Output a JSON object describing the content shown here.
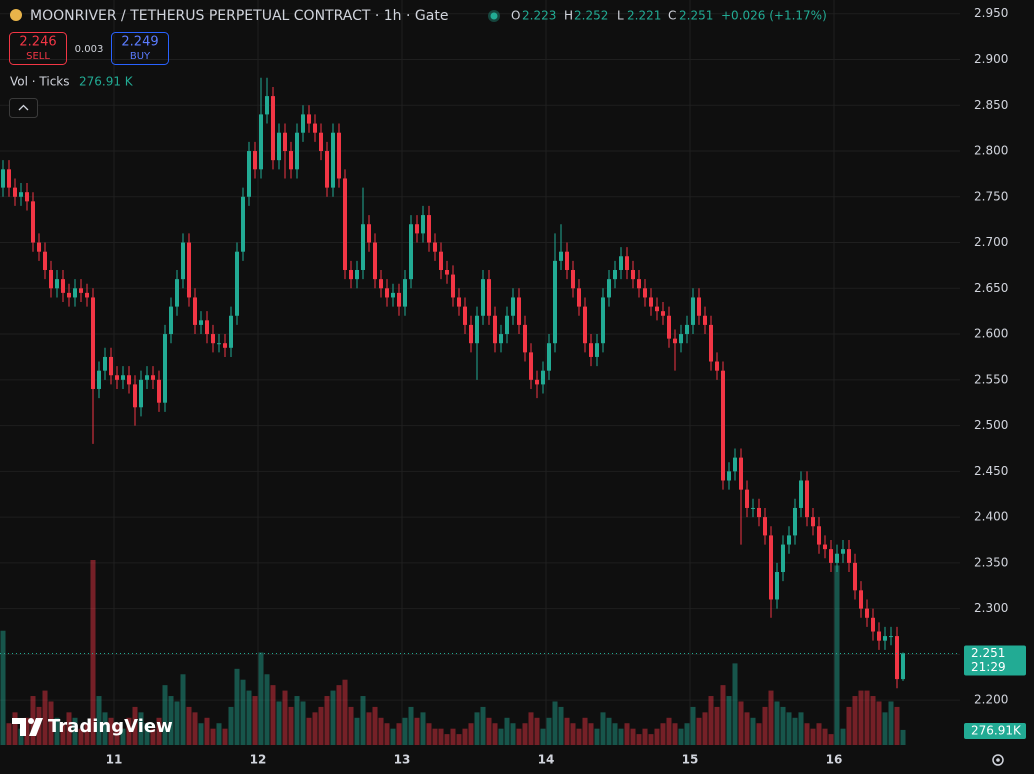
{
  "chart_data": {
    "type": "candlestick",
    "title": "MOONRIVER / TETHERUS PERPETUAL CONTRACT · 1h · Gate",
    "ohlc_labels": [
      "O",
      "H",
      "L",
      "C"
    ],
    "change": "+0.026 (+1.17%)",
    "sell_price": 2.246,
    "sell_label": "SELL",
    "spread": 0.003,
    "buy_price": 2.249,
    "buy_label": "BUY",
    "volume_title": "Vol · Ticks",
    "volume_header_value": "276.91 K",
    "volume_label": "276.91K",
    "countdown": "21:29",
    "brand": "TradingView",
    "up_color": "#22ab94",
    "down_color": "#f23645",
    "grid": true,
    "xlim": [
      -0.5,
      150.5
    ],
    "xticks": [
      {
        "value": 18.5,
        "label": "11"
      },
      {
        "value": 42.5,
        "label": "12"
      },
      {
        "value": 66.5,
        "label": "13"
      },
      {
        "value": 90.5,
        "label": "14"
      },
      {
        "value": 114.5,
        "label": "15"
      },
      {
        "value": 138.5,
        "label": "16"
      }
    ],
    "ylim": [
      2.151,
      2.965
    ],
    "yticks": [
      {
        "value": 2.2,
        "label": "2.200"
      },
      {
        "value": 2.25,
        "label": "2.250"
      },
      {
        "value": 2.3,
        "label": "2.300"
      },
      {
        "value": 2.35,
        "label": "2.350"
      },
      {
        "value": 2.4,
        "label": "2.400"
      },
      {
        "value": 2.45,
        "label": "2.450"
      },
      {
        "value": 2.5,
        "label": "2.500"
      },
      {
        "value": 2.55,
        "label": "2.550"
      },
      {
        "value": 2.6,
        "label": "2.600"
      },
      {
        "value": 2.65,
        "label": "2.650"
      },
      {
        "value": 2.7,
        "label": "2.700"
      },
      {
        "value": 2.75,
        "label": "2.750"
      },
      {
        "value": 2.8,
        "label": "2.800"
      },
      {
        "value": 2.85,
        "label": "2.850"
      },
      {
        "value": 2.9,
        "label": "2.900"
      },
      {
        "value": 2.95,
        "label": "2.950"
      }
    ],
    "open": [
      2.76,
      2.78,
      2.76,
      2.75,
      2.755,
      2.745,
      2.7,
      2.69,
      2.67,
      2.65,
      2.66,
      2.645,
      2.64,
      2.65,
      2.645,
      2.64,
      2.54,
      2.56,
      2.575,
      2.555,
      2.55,
      2.555,
      2.545,
      2.52,
      2.55,
      2.555,
      2.55,
      2.525,
      2.6,
      2.63,
      2.66,
      2.7,
      2.64,
      2.61,
      2.615,
      2.6,
      2.59,
      2.59,
      2.585,
      2.62,
      2.69,
      2.75,
      2.8,
      2.78,
      2.84,
      2.86,
      2.79,
      2.82,
      2.8,
      2.78,
      2.82,
      2.84,
      2.83,
      2.82,
      2.8,
      2.76,
      2.82,
      2.77,
      2.67,
      2.66,
      2.67,
      2.72,
      2.7,
      2.66,
      2.65,
      2.64,
      2.645,
      2.63,
      2.66,
      2.72,
      2.71,
      2.73,
      2.7,
      2.69,
      2.67,
      2.665,
      2.64,
      2.63,
      2.61,
      2.59,
      2.62,
      2.66,
      2.62,
      2.59,
      2.6,
      2.62,
      2.64,
      2.61,
      2.58,
      2.55,
      2.545,
      2.56,
      2.59,
      2.68,
      2.69,
      2.67,
      2.65,
      2.63,
      2.59,
      2.575,
      2.59,
      2.64,
      2.66,
      2.67,
      2.685,
      2.67,
      2.66,
      2.65,
      2.64,
      2.63,
      2.625,
      2.62,
      2.595,
      2.59,
      2.6,
      2.61,
      2.64,
      2.62,
      2.61,
      2.57,
      2.56,
      2.44,
      2.45,
      2.465,
      2.43,
      2.41,
      2.41,
      2.4,
      2.38,
      2.31,
      2.34,
      2.37,
      2.38,
      2.41,
      2.44,
      2.4,
      2.39,
      2.37,
      2.365,
      2.35,
      2.36,
      2.365,
      2.35,
      2.32,
      2.3,
      2.29,
      2.275,
      2.265,
      2.27,
      2.27,
      2.223
    ],
    "high": [
      2.79,
      2.79,
      2.77,
      2.765,
      2.765,
      2.755,
      2.71,
      2.7,
      2.68,
      2.67,
      2.67,
      2.655,
      2.66,
      2.66,
      2.655,
      2.65,
      2.57,
      2.585,
      2.585,
      2.565,
      2.565,
      2.565,
      2.555,
      2.56,
      2.565,
      2.565,
      2.56,
      2.61,
      2.64,
      2.67,
      2.71,
      2.71,
      2.65,
      2.625,
      2.625,
      2.61,
      2.6,
      2.6,
      2.63,
      2.7,
      2.76,
      2.81,
      2.81,
      2.88,
      2.88,
      2.87,
      2.83,
      2.83,
      2.81,
      2.83,
      2.85,
      2.85,
      2.84,
      2.83,
      2.81,
      2.83,
      2.83,
      2.78,
      2.68,
      2.68,
      2.76,
      2.73,
      2.71,
      2.67,
      2.66,
      2.655,
      2.655,
      2.67,
      2.73,
      2.73,
      2.74,
      2.74,
      2.71,
      2.7,
      2.68,
      2.675,
      2.65,
      2.64,
      2.62,
      2.63,
      2.67,
      2.67,
      2.63,
      2.61,
      2.63,
      2.65,
      2.65,
      2.62,
      2.59,
      2.56,
      2.57,
      2.6,
      2.71,
      2.72,
      2.7,
      2.68,
      2.66,
      2.64,
      2.6,
      2.6,
      2.65,
      2.67,
      2.68,
      2.695,
      2.695,
      2.68,
      2.67,
      2.66,
      2.65,
      2.64,
      2.635,
      2.63,
      2.605,
      2.61,
      2.62,
      2.65,
      2.65,
      2.63,
      2.62,
      2.58,
      2.57,
      2.46,
      2.475,
      2.475,
      2.44,
      2.42,
      2.42,
      2.41,
      2.39,
      2.35,
      2.38,
      2.39,
      2.42,
      2.45,
      2.45,
      2.41,
      2.4,
      2.38,
      2.375,
      2.37,
      2.375,
      2.375,
      2.36,
      2.33,
      2.31,
      2.3,
      2.285,
      2.28,
      2.28,
      2.28,
      2.252
    ],
    "low": [
      2.75,
      2.75,
      2.74,
      2.74,
      2.735,
      2.69,
      2.68,
      2.66,
      2.64,
      2.64,
      2.635,
      2.63,
      2.63,
      2.635,
      2.63,
      2.48,
      2.53,
      2.55,
      2.545,
      2.54,
      2.54,
      2.535,
      2.5,
      2.51,
      2.54,
      2.54,
      2.515,
      2.515,
      2.59,
      2.62,
      2.65,
      2.63,
      2.6,
      2.6,
      2.59,
      2.58,
      2.58,
      2.575,
      2.575,
      2.61,
      2.68,
      2.74,
      2.77,
      2.77,
      2.83,
      2.78,
      2.78,
      2.77,
      2.77,
      2.77,
      2.81,
      2.82,
      2.81,
      2.79,
      2.75,
      2.75,
      2.76,
      2.66,
      2.65,
      2.65,
      2.66,
      2.69,
      2.65,
      2.64,
      2.63,
      2.63,
      2.62,
      2.62,
      2.65,
      2.7,
      2.7,
      2.69,
      2.68,
      2.66,
      2.655,
      2.63,
      2.62,
      2.6,
      2.58,
      2.55,
      2.61,
      2.61,
      2.58,
      2.58,
      2.59,
      2.61,
      2.6,
      2.57,
      2.54,
      2.53,
      2.535,
      2.55,
      2.58,
      2.67,
      2.66,
      2.64,
      2.62,
      2.58,
      2.565,
      2.565,
      2.58,
      2.63,
      2.65,
      2.66,
      2.66,
      2.65,
      2.64,
      2.63,
      2.62,
      2.615,
      2.61,
      2.585,
      2.56,
      2.58,
      2.59,
      2.6,
      2.61,
      2.6,
      2.56,
      2.55,
      2.43,
      2.43,
      2.44,
      2.37,
      2.4,
      2.4,
      2.39,
      2.37,
      2.29,
      2.3,
      2.33,
      2.36,
      2.37,
      2.4,
      2.39,
      2.38,
      2.36,
      2.355,
      2.34,
      2.34,
      2.35,
      2.34,
      2.31,
      2.29,
      2.28,
      2.265,
      2.255,
      2.255,
      2.26,
      2.213,
      2.221
    ],
    "close": [
      2.78,
      2.76,
      2.75,
      2.755,
      2.745,
      2.7,
      2.69,
      2.67,
      2.65,
      2.66,
      2.645,
      2.64,
      2.65,
      2.645,
      2.64,
      2.54,
      2.56,
      2.575,
      2.555,
      2.55,
      2.555,
      2.545,
      2.52,
      2.55,
      2.555,
      2.55,
      2.525,
      2.6,
      2.63,
      2.66,
      2.7,
      2.64,
      2.61,
      2.615,
      2.6,
      2.59,
      2.59,
      2.585,
      2.62,
      2.69,
      2.75,
      2.8,
      2.78,
      2.84,
      2.86,
      2.79,
      2.82,
      2.8,
      2.78,
      2.82,
      2.84,
      2.83,
      2.82,
      2.8,
      2.76,
      2.82,
      2.77,
      2.67,
      2.66,
      2.67,
      2.72,
      2.7,
      2.66,
      2.65,
      2.64,
      2.645,
      2.63,
      2.66,
      2.72,
      2.71,
      2.73,
      2.7,
      2.69,
      2.67,
      2.665,
      2.64,
      2.63,
      2.61,
      2.59,
      2.62,
      2.66,
      2.62,
      2.59,
      2.6,
      2.62,
      2.64,
      2.61,
      2.58,
      2.55,
      2.545,
      2.56,
      2.59,
      2.68,
      2.69,
      2.67,
      2.65,
      2.63,
      2.59,
      2.575,
      2.59,
      2.64,
      2.66,
      2.67,
      2.685,
      2.67,
      2.66,
      2.65,
      2.64,
      2.63,
      2.625,
      2.62,
      2.595,
      2.59,
      2.6,
      2.61,
      2.64,
      2.62,
      2.61,
      2.57,
      2.56,
      2.44,
      2.45,
      2.465,
      2.43,
      2.41,
      2.41,
      2.4,
      2.38,
      2.31,
      2.34,
      2.37,
      2.38,
      2.41,
      2.44,
      2.4,
      2.39,
      2.37,
      2.365,
      2.35,
      2.36,
      2.365,
      2.35,
      2.32,
      2.3,
      2.29,
      2.275,
      2.265,
      2.27,
      2.27,
      2.223,
      2.251
    ],
    "volume": [
      2100,
      400,
      600,
      300,
      500,
      900,
      700,
      1000,
      800,
      500,
      400,
      600,
      500,
      300,
      400,
      3400,
      900,
      600,
      500,
      400,
      300,
      500,
      700,
      600,
      400,
      300,
      500,
      1100,
      900,
      800,
      1300,
      700,
      600,
      400,
      500,
      300,
      400,
      300,
      700,
      1400,
      1200,
      1000,
      900,
      1700,
      1300,
      1100,
      800,
      1000,
      700,
      900,
      800,
      500,
      600,
      700,
      900,
      1000,
      1100,
      1200,
      700,
      500,
      900,
      600,
      700,
      500,
      400,
      300,
      400,
      500,
      700,
      500,
      600,
      400,
      300,
      300,
      200,
      300,
      200,
      300,
      400,
      600,
      700,
      500,
      400,
      300,
      500,
      400,
      300,
      400,
      600,
      500,
      300,
      500,
      800,
      700,
      500,
      400,
      300,
      500,
      400,
      300,
      600,
      500,
      400,
      300,
      400,
      300,
      200,
      300,
      200,
      300,
      400,
      500,
      400,
      300,
      400,
      700,
      500,
      600,
      900,
      700,
      1100,
      900,
      1500,
      800,
      600,
      500,
      400,
      700,
      1000,
      800,
      700,
      600,
      500,
      600,
      400,
      300,
      400,
      300,
      200,
      3300,
      300,
      700,
      900,
      1000,
      1000,
      900,
      800,
      600,
      800,
      700,
      276.91
    ]
  }
}
